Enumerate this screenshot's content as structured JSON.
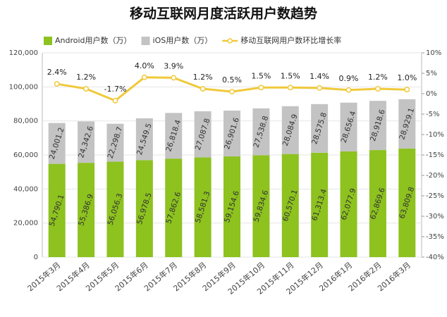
{
  "chart_data": {
    "type": "bar",
    "stacked": true,
    "title": "移动互联网月度活跃用户数趋势",
    "categories": [
      "2015年3月",
      "2015年4月",
      "2015年5月",
      "2015年6月",
      "2015年7月",
      "2015年8月",
      "2015年9月",
      "2015年10月",
      "2015年11月",
      "2015年12月",
      "2016年1月",
      "2016年2月",
      "2016年3月"
    ],
    "series": [
      {
        "name": "Android用户数（万）",
        "type": "bar",
        "color": "#8dc21f",
        "values": [
          54790.1,
          55386.9,
          56056.3,
          56978.5,
          57862.6,
          58581.3,
          59154.6,
          59834.6,
          60570.1,
          61313.4,
          62077.9,
          62869.6,
          63809.8
        ],
        "value_labels": [
          "54,790.1",
          "55,386.9",
          "56,056.3",
          "56,978.5",
          "57,862.6",
          "58,581.3",
          "59,154.6",
          "59,834.6",
          "60,570.1",
          "61,313.4",
          "62,077.9",
          "62,869.6",
          "63,809.8"
        ]
      },
      {
        "name": "iOS用户数（万）",
        "type": "bar",
        "color": "#c3c3c3",
        "values": [
          24001.2,
          24342.6,
          22298.7,
          24549.5,
          26818.4,
          27087.8,
          26901.6,
          27538.8,
          28084.9,
          28575.8,
          28656.4,
          28918.6,
          28929.1
        ],
        "value_labels": [
          "24,001.2",
          "24,342.6",
          "22,298.7",
          "24,549.5",
          "26,818.4",
          "27,087.8",
          "26,901.6",
          "27,538.8",
          "28,084.9",
          "28,575.8",
          "28,656.4",
          "28,918.6",
          "28,929.1"
        ]
      },
      {
        "name": "移动互联网用户数环比增长率",
        "type": "line",
        "axis": "y2",
        "color": "#f0c93a",
        "values": [
          2.4,
          1.2,
          -1.7,
          4.0,
          3.9,
          1.2,
          0.5,
          1.5,
          1.5,
          1.4,
          0.9,
          1.2,
          1.0
        ],
        "value_labels": [
          "2.4%",
          "1.2%",
          "-1.7%",
          "4.0%",
          "3.9%",
          "1.2%",
          "0.5%",
          "1.5%",
          "1.5%",
          "1.4%",
          "0.9%",
          "1.2%",
          "1.0%"
        ]
      }
    ],
    "ylim": [
      0,
      120000
    ],
    "yticks": [
      0,
      {
        "value": 20000,
        "label": "20,000"
      },
      {
        "value": 40000,
        "label": "40,000"
      },
      {
        "value": 60000,
        "label": "60,000"
      },
      {
        "value": 80000,
        "label": "80,000"
      },
      {
        "value": 100000,
        "label": "100,000"
      },
      {
        "value": 120000,
        "label": "120,000"
      }
    ],
    "y2lim": [
      -40,
      10
    ],
    "y2ticks": [
      {
        "value": -40,
        "label": "-40%"
      },
      {
        "value": -35,
        "label": "-35%"
      },
      {
        "value": -30,
        "label": "-30%"
      },
      {
        "value": -25,
        "label": "-25%"
      },
      {
        "value": -20,
        "label": "-20%"
      },
      {
        "value": -15,
        "label": "-15%"
      },
      {
        "value": -10,
        "label": "-10%"
      },
      {
        "value": -5,
        "label": "-5%"
      },
      {
        "value": 0,
        "label": "0%"
      },
      {
        "value": 5,
        "label": "5%"
      },
      {
        "value": 10,
        "label": "10%"
      }
    ],
    "grid": true,
    "legend": "top"
  }
}
